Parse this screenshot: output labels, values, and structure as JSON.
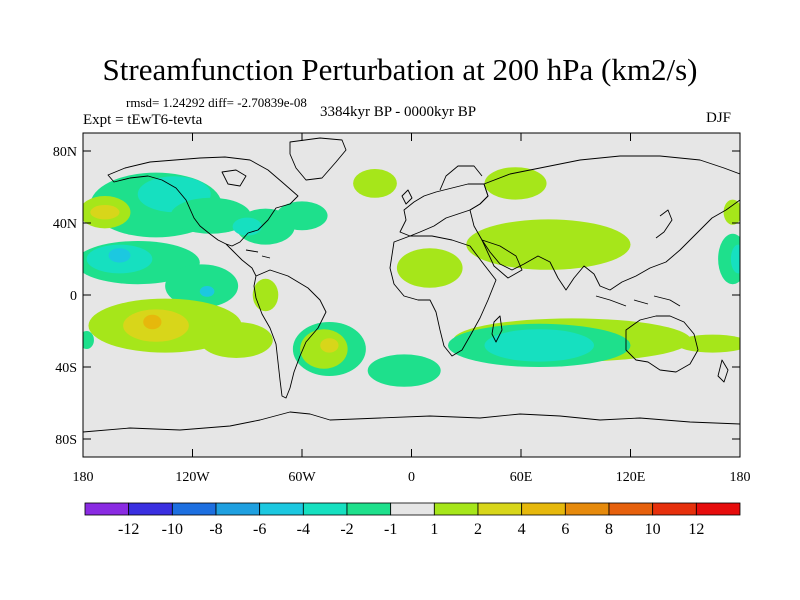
{
  "chart_data": {
    "type": "contour_map",
    "title": "Streamfunction Perturbation at 200 hPa (km2/s)",
    "stats": "rmsd= 1.24292 diff= -2.70839e-08",
    "left_label": "Expt = tEwT6-tevta",
    "center_label": "3384kyr BP - 0000kyr BP",
    "right_label": "DJF",
    "x_ticks": [
      {
        "value": -180,
        "label": "180"
      },
      {
        "value": -120,
        "label": "120W"
      },
      {
        "value": -60,
        "label": "60W"
      },
      {
        "value": 0,
        "label": "0"
      },
      {
        "value": 60,
        "label": "60E"
      },
      {
        "value": 120,
        "label": "120E"
      },
      {
        "value": 180,
        "label": "180"
      }
    ],
    "y_ticks": [
      {
        "value": 80,
        "label": "80N"
      },
      {
        "value": 40,
        "label": "40N"
      },
      {
        "value": 0,
        "label": "0"
      },
      {
        "value": -40,
        "label": "40S"
      },
      {
        "value": -80,
        "label": "80S"
      }
    ],
    "xlim": [
      -180,
      180
    ],
    "ylim": [
      -90,
      90
    ],
    "colorbar": {
      "labels": [
        "-12",
        "-10",
        "-8",
        "-6",
        "-4",
        "-2",
        "-1",
        "1",
        "2",
        "4",
        "6",
        "8",
        "10",
        "12"
      ],
      "colors": [
        "#8a2be2",
        "#3a2fe0",
        "#1d6fe0",
        "#1fa0e0",
        "#1cc8e0",
        "#16e0c0",
        "#1ee08c",
        "#e6e6e6",
        "#a6e61a",
        "#d8d61a",
        "#e6b80c",
        "#e68a0c",
        "#e6600c",
        "#e6300c",
        "#e60c0c"
      ]
    },
    "anomaly_regions": [
      {
        "level": "-1",
        "lon": -140,
        "lat": 50,
        "rlon": 36,
        "rlat": 18
      },
      {
        "level": "-2",
        "lon": -130,
        "lat": 56,
        "rlon": 20,
        "rlat": 10
      },
      {
        "level": "-1",
        "lon": -110,
        "lat": 44,
        "rlon": 22,
        "rlat": 10
      },
      {
        "level": "-1",
        "lon": -80,
        "lat": 38,
        "rlon": 16,
        "rlat": 10
      },
      {
        "level": "-1",
        "lon": -60,
        "lat": 44,
        "rlon": 14,
        "rlat": 8
      },
      {
        "level": "-2",
        "lon": -90,
        "lat": 38,
        "rlon": 8,
        "rlat": 5
      },
      {
        "level": "-1",
        "lon": -150,
        "lat": 18,
        "rlon": 34,
        "rlat": 12
      },
      {
        "level": "-1",
        "lon": -115,
        "lat": 5,
        "rlon": 20,
        "rlat": 12
      },
      {
        "level": "-2",
        "lon": -160,
        "lat": 20,
        "rlon": 18,
        "rlat": 8
      },
      {
        "level": "-4",
        "lon": -160,
        "lat": 22,
        "rlon": 6,
        "rlat": 4
      },
      {
        "level": "-4",
        "lon": -112,
        "lat": 2,
        "rlon": 4,
        "rlat": 3
      },
      {
        "level": "2",
        "lon": -168,
        "lat": 46,
        "rlon": 14,
        "rlat": 9
      },
      {
        "level": "4",
        "lon": -168,
        "lat": 46,
        "rlon": 8,
        "rlat": 4
      },
      {
        "level": "2",
        "lon": -135,
        "lat": -17,
        "rlon": 42,
        "rlat": 15
      },
      {
        "level": "2",
        "lon": -96,
        "lat": -25,
        "rlon": 20,
        "rlat": 10
      },
      {
        "level": "4",
        "lon": -140,
        "lat": -17,
        "rlon": 18,
        "rlat": 9
      },
      {
        "level": "6",
        "lon": -142,
        "lat": -15,
        "rlon": 5,
        "rlat": 4
      },
      {
        "level": "2",
        "lon": -80,
        "lat": 0,
        "rlon": 7,
        "rlat": 9
      },
      {
        "level": "-1",
        "lon": -45,
        "lat": -30,
        "rlon": 20,
        "rlat": 15
      },
      {
        "level": "2",
        "lon": -48,
        "lat": -30,
        "rlon": 13,
        "rlat": 11
      },
      {
        "level": "4",
        "lon": -45,
        "lat": -28,
        "rlon": 5,
        "rlat": 4
      },
      {
        "level": "-1",
        "lon": -4,
        "lat": -42,
        "rlon": 20,
        "rlat": 9
      },
      {
        "level": "2",
        "lon": -20,
        "lat": 62,
        "rlon": 12,
        "rlat": 8
      },
      {
        "level": "2",
        "lon": 57,
        "lat": 62,
        "rlon": 17,
        "rlat": 9
      },
      {
        "level": "2",
        "lon": 10,
        "lat": 15,
        "rlon": 18,
        "rlat": 11
      },
      {
        "level": "2",
        "lon": 75,
        "lat": 28,
        "rlon": 45,
        "rlat": 14
      },
      {
        "level": "2",
        "lon": 88,
        "lat": -25,
        "rlon": 65,
        "rlat": 12
      },
      {
        "level": "-1",
        "lon": 70,
        "lat": -28,
        "rlon": 50,
        "rlat": 12
      },
      {
        "level": "-2",
        "lon": 70,
        "lat": -28,
        "rlon": 30,
        "rlat": 9
      },
      {
        "level": "2",
        "lon": 176,
        "lat": 46,
        "rlon": 5,
        "rlat": 7
      },
      {
        "level": "-1",
        "lon": 176,
        "lat": 20,
        "rlon": 8,
        "rlat": 14
      },
      {
        "level": "-2",
        "lon": 179,
        "lat": 20,
        "rlon": 4,
        "rlat": 8
      },
      {
        "level": "2",
        "lon": 165,
        "lat": -27,
        "rlon": 20,
        "rlat": 5
      },
      {
        "level": "-1",
        "lon": -178,
        "lat": -25,
        "rlon": 4,
        "rlat": 5
      }
    ]
  }
}
